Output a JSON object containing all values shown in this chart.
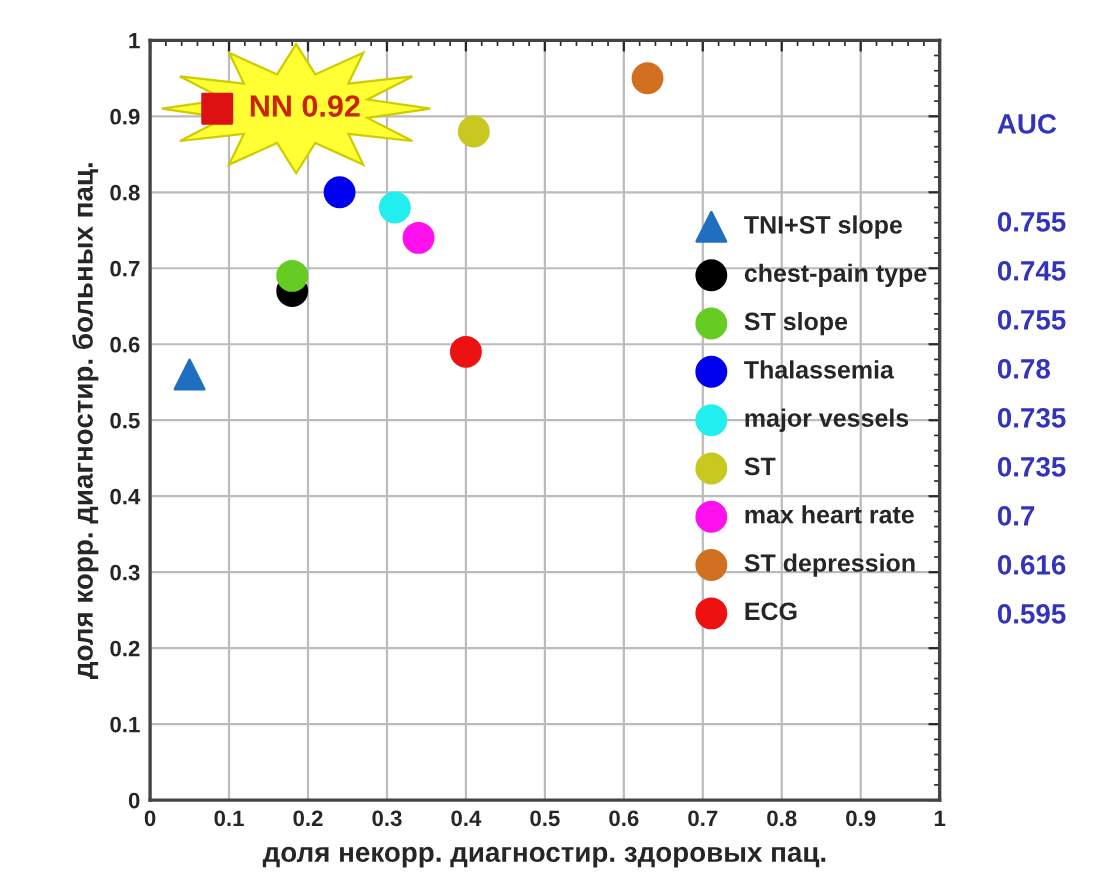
{
  "chart_data": {
    "type": "scatter",
    "xlabel": "доля некорр. диагностир. здоровых пац.",
    "ylabel": "доля корр. диагностир. больных пац.",
    "xlim": [
      0,
      1
    ],
    "ylim": [
      0,
      1
    ],
    "xticks": [
      0,
      0.1,
      0.2,
      0.3,
      0.4,
      0.5,
      0.6,
      0.7,
      0.8,
      0.9,
      1
    ],
    "yticks": [
      0,
      0.1,
      0.2,
      0.3,
      0.4,
      0.5,
      0.6,
      0.7,
      0.8,
      0.9,
      1
    ],
    "grid": true,
    "legend": "right",
    "series": [
      {
        "name": "TNI+ST slope",
        "color": "#1f6fc0",
        "marker": "triangle",
        "x": [
          0.05
        ],
        "values": [
          0.56
        ]
      },
      {
        "name": "chest-pain type",
        "color": "#000000",
        "marker": "circle",
        "x": [
          0.18
        ],
        "values": [
          0.67
        ]
      },
      {
        "name": "ST slope",
        "color": "#66cc22",
        "marker": "circle",
        "x": [
          0.18
        ],
        "values": [
          0.69
        ]
      },
      {
        "name": "Thalassemia",
        "color": "#0000ee",
        "marker": "circle",
        "x": [
          0.24
        ],
        "values": [
          0.8
        ]
      },
      {
        "name": "major vessels",
        "color": "#22eeee",
        "marker": "circle",
        "x": [
          0.31
        ],
        "values": [
          0.78
        ]
      },
      {
        "name": "ST",
        "color": "#c8c820",
        "marker": "circle",
        "x": [
          0.41
        ],
        "values": [
          0.88
        ]
      },
      {
        "name": "max heart rate",
        "color": "#ff11ee",
        "marker": "circle",
        "x": [
          0.34
        ],
        "values": [
          0.74
        ]
      },
      {
        "name": "ST depression",
        "color": "#d07020",
        "marker": "circle",
        "x": [
          0.63
        ],
        "values": [
          0.95
        ]
      },
      {
        "name": "ECG",
        "color": "#ee1111",
        "marker": "circle",
        "x": [
          0.4
        ],
        "values": [
          0.59
        ]
      },
      {
        "name": "NN 0.92",
        "color": "#dd1111",
        "marker": "square",
        "x": [
          0.085
        ],
        "values": [
          0.91
        ]
      }
    ],
    "annotations": [
      "AUC",
      "0.755",
      "0.745",
      "0.755",
      "0.78",
      "0.735",
      "0.735",
      "0.7",
      "0.616",
      "0.595"
    ]
  }
}
